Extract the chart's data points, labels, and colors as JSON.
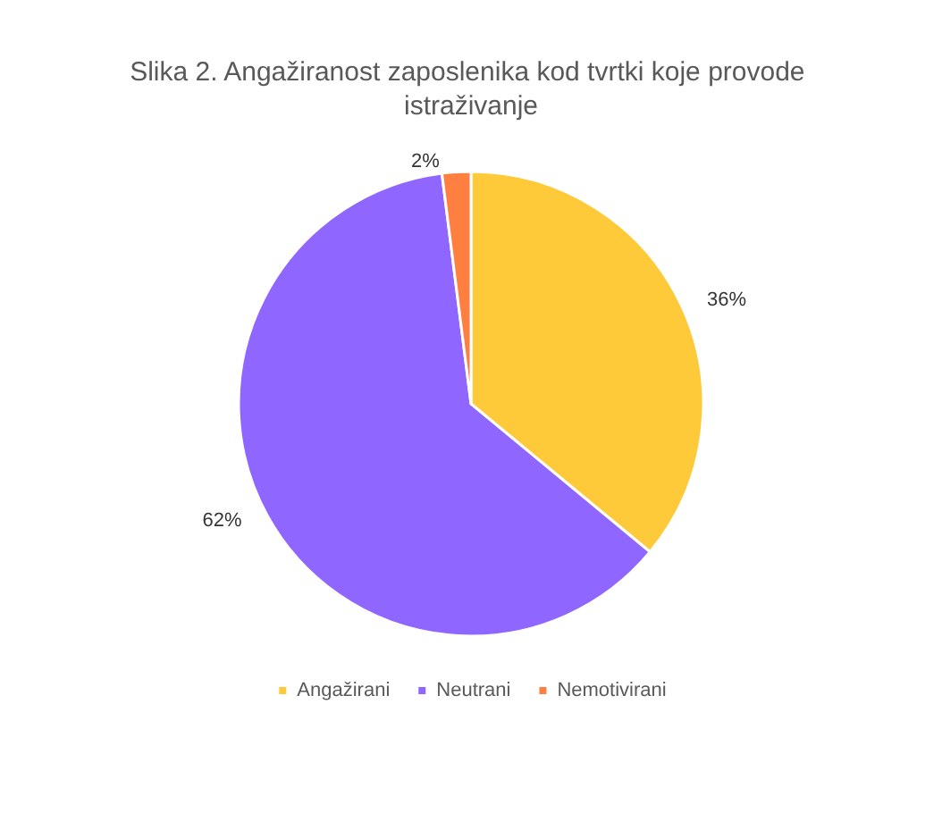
{
  "chart_data": {
    "type": "pie",
    "title": "Slika 2. Angažiranost zaposlenika kod tvrtki koje provode istraživanje",
    "categories": [
      "Angažirani",
      "Neutrani",
      "Nemotivirani"
    ],
    "values": [
      36,
      62,
      2
    ],
    "colors": [
      "#ffca3a",
      "#8f66ff",
      "#ff7f41"
    ],
    "value_labels": [
      "36%",
      "62%",
      "2%"
    ],
    "legend": "bottom"
  }
}
